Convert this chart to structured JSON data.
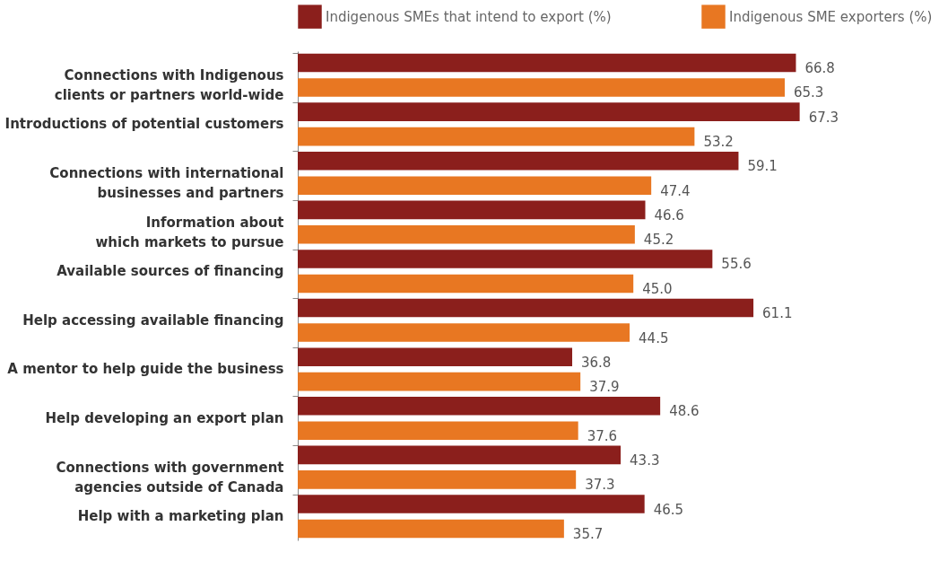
{
  "chart_data": {
    "type": "bar",
    "orientation": "horizontal",
    "legend": "top",
    "categories": [
      "Connections with Indigenous clients or partners world-wide",
      "Introductions of potential customers",
      "Connections with international businesses and partners",
      "Information about which markets to pursue",
      "Available sources of financing",
      "Help accessing available financing",
      "A mentor to help guide the business",
      "Help developing an export plan",
      "Connections with government agencies outside of Canada",
      "Help with a marketing plan"
    ],
    "series": [
      {
        "name": "Indigenous SMEs that intend to export (%)",
        "color": "#8b1f1c",
        "values": [
          66.8,
          67.3,
          59.1,
          46.6,
          55.6,
          61.1,
          36.8,
          48.6,
          43.3,
          46.5
        ],
        "value_labels": [
          "66.8",
          "67.3",
          "59.1",
          "46.6",
          "55.6",
          "61.1",
          "36.8",
          "48.6",
          "43.3",
          "46.5"
        ]
      },
      {
        "name": "Indigenous SME exporters (%)",
        "color": "#e87722",
        "values": [
          65.3,
          53.2,
          47.4,
          45.2,
          45.0,
          44.5,
          37.9,
          37.6,
          37.3,
          35.7
        ],
        "value_labels": [
          "65.3",
          "53.2",
          "47.4",
          "45.2",
          "45.0",
          "44.5",
          "37.9",
          "37.6",
          "37.3",
          "35.7"
        ]
      }
    ]
  }
}
